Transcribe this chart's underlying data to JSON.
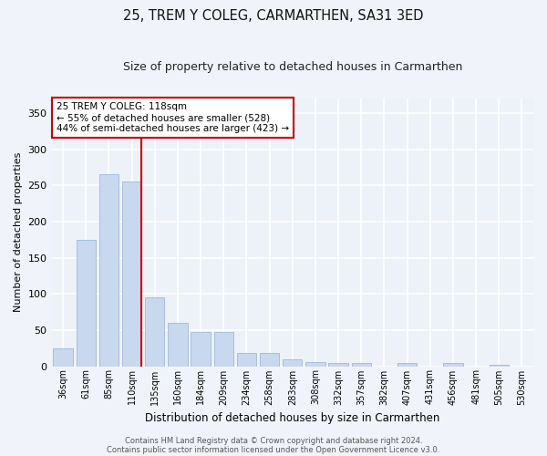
{
  "title1": "25, TREM Y COLEG, CARMARTHEN, SA31 3ED",
  "title2": "Size of property relative to detached houses in Carmarthen",
  "xlabel": "Distribution of detached houses by size in Carmarthen",
  "ylabel": "Number of detached properties",
  "categories": [
    "36sqm",
    "61sqm",
    "85sqm",
    "110sqm",
    "135sqm",
    "160sqm",
    "184sqm",
    "209sqm",
    "234sqm",
    "258sqm",
    "283sqm",
    "308sqm",
    "332sqm",
    "357sqm",
    "382sqm",
    "407sqm",
    "431sqm",
    "456sqm",
    "481sqm",
    "505sqm",
    "530sqm"
  ],
  "values": [
    25,
    175,
    265,
    255,
    95,
    60,
    47,
    47,
    18,
    18,
    10,
    6,
    5,
    5,
    0,
    5,
    0,
    5,
    0,
    2,
    0
  ],
  "bar_color": "#c8d8ee",
  "bar_edge_color": "#a0b8d8",
  "vline_color": "#cc0000",
  "annotation_text": "25 TREM Y COLEG: 118sqm\n← 55% of detached houses are smaller (528)\n44% of semi-detached houses are larger (423) →",
  "annotation_box_edge": "#cc0000",
  "footer1": "Contains HM Land Registry data © Crown copyright and database right 2024.",
  "footer2": "Contains public sector information licensed under the Open Government Licence v3.0.",
  "ylim": [
    0,
    370
  ],
  "yticks": [
    0,
    50,
    100,
    150,
    200,
    250,
    300,
    350
  ],
  "bg_color": "#edf1f8",
  "grid_color": "#ffffff",
  "title1_fontsize": 10.5,
  "title2_fontsize": 9
}
